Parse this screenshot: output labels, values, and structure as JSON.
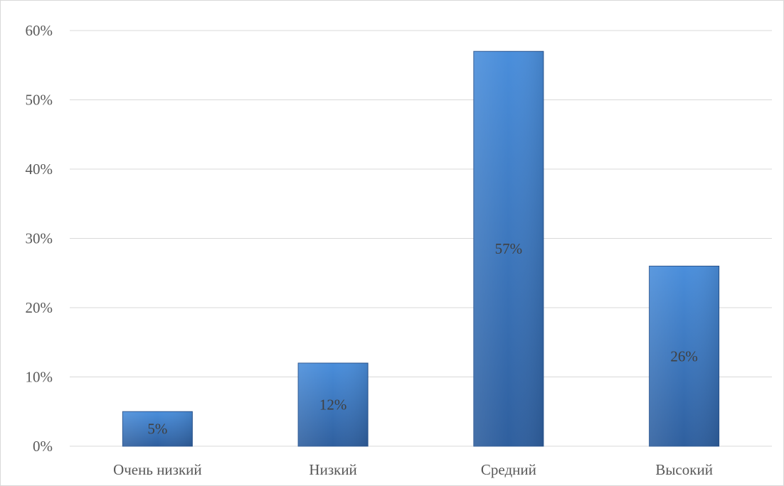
{
  "chart_data": {
    "type": "bar",
    "categories": [
      "Очень низкий",
      "Низкий",
      "Средний",
      "Высокий"
    ],
    "values": [
      5,
      12,
      57,
      26
    ],
    "data_labels": [
      "5%",
      "12%",
      "57%",
      "26%"
    ],
    "y_ticks": [
      "0%",
      "10%",
      "20%",
      "30%",
      "40%",
      "50%",
      "60%"
    ],
    "y_tick_values": [
      0,
      10,
      20,
      30,
      40,
      50,
      60
    ],
    "ylim": [
      0,
      60
    ],
    "title": "",
    "xlabel": "",
    "ylabel": "",
    "grid": true,
    "legend": "none",
    "colors": {
      "bar_top": "#4a8edb",
      "bar_bottom": "#2f5f9e",
      "bar_edge": "#2a5590",
      "gridline": "#d9d9d9"
    }
  }
}
